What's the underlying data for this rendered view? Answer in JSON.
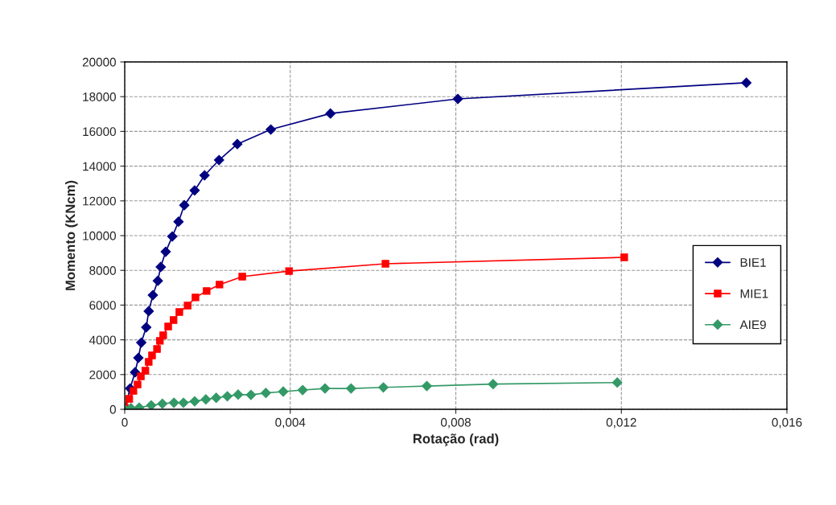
{
  "chart_data": {
    "type": "line",
    "xlabel": "Rotação (rad)",
    "ylabel": "Momento (KNcm)",
    "xlim": [
      0,
      0.016
    ],
    "ylim": [
      0,
      20000
    ],
    "xticks": [
      0,
      {
        "value": 0.004,
        "label": "0,004"
      },
      {
        "value": 0.008,
        "label": "0,008"
      },
      {
        "value": 0.012,
        "label": "0,012"
      },
      {
        "value": 0.016,
        "label": "0,016"
      }
    ],
    "yticks": [
      0,
      2000,
      4000,
      6000,
      8000,
      10000,
      12000,
      14000,
      16000,
      18000,
      20000
    ],
    "grid": true,
    "legend": "right",
    "line_style": "solid",
    "series": [
      {
        "name": "BIE1",
        "color": "#000080",
        "marker": "diamond",
        "x": [
          0,
          0.00013,
          0.00025,
          0.00033,
          0.0004,
          0.00052,
          0.00058,
          0.00068,
          0.0008,
          0.00087,
          0.00099,
          0.00115,
          0.0013,
          0.00144,
          0.00169,
          0.00193,
          0.00228,
          0.00272,
          0.00353,
          0.00497,
          0.00805,
          0.01502
        ],
        "values": [
          0,
          1200,
          2130,
          2960,
          3840,
          4720,
          5650,
          6570,
          7400,
          8200,
          9070,
          9950,
          10800,
          11750,
          12600,
          13470,
          14350,
          15270,
          16110,
          17030,
          17870,
          18800
        ]
      },
      {
        "name": "MIE1",
        "color": "#ff0000",
        "marker": "square",
        "x": [
          0,
          0.00011,
          0.00021,
          0.00031,
          0.00039,
          0.0005,
          0.00058,
          0.00066,
          0.00078,
          0.00085,
          0.00093,
          0.00105,
          0.00118,
          0.00132,
          0.00152,
          0.00171,
          0.00198,
          0.00229,
          0.00284,
          0.00397,
          0.0063,
          0.01207
        ],
        "values": [
          100,
          600,
          1060,
          1430,
          1900,
          2220,
          2730,
          3100,
          3470,
          3940,
          4260,
          4770,
          5140,
          5600,
          5970,
          6440,
          6810,
          7180,
          7640,
          7960,
          8380,
          8750
        ]
      },
      {
        "name": "AIE9",
        "color": "#339966",
        "marker": "diamond",
        "x": [
          0,
          0.00015,
          0.00035,
          0.00064,
          0.00091,
          0.00119,
          0.00142,
          0.00169,
          0.00196,
          0.00221,
          0.00248,
          0.00274,
          0.00305,
          0.00341,
          0.00383,
          0.0043,
          0.00484,
          0.00547,
          0.00625,
          0.0073,
          0.0089,
          0.0119
        ],
        "values": [
          0,
          60,
          100,
          230,
          320,
          380,
          380,
          460,
          570,
          660,
          750,
          850,
          830,
          940,
          1020,
          1110,
          1200,
          1200,
          1260,
          1340,
          1450,
          1540
        ]
      }
    ]
  }
}
